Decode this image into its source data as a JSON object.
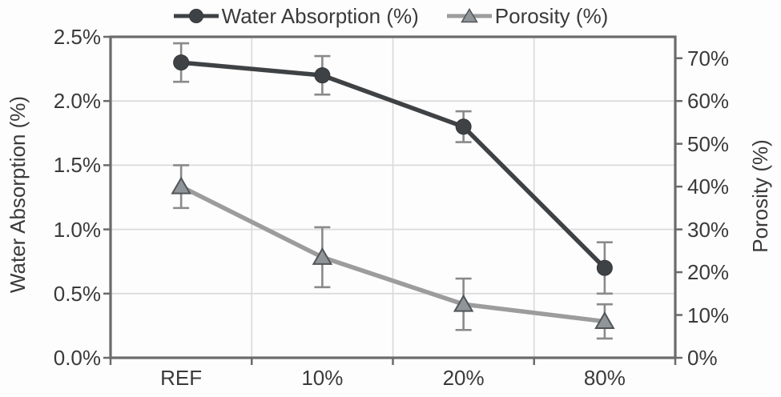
{
  "chart_data": {
    "type": "line",
    "title": "",
    "categories": [
      "REF",
      "10%",
      "20%",
      "80%"
    ],
    "series": [
      {
        "name": "Water Absorption (%)",
        "yaxis": "left",
        "marker": "circle",
        "color": "#3f4245",
        "marker_fill": "#3f4245",
        "marker_stroke": "#32353a",
        "values": [
          2.3,
          2.2,
          1.8,
          0.7
        ],
        "error": [
          0.15,
          0.15,
          0.12,
          0.2
        ]
      },
      {
        "name": "Porosity (%)",
        "yaxis": "right",
        "marker": "triangle",
        "color": "#9c9c9c",
        "marker_fill": "#8f9598",
        "marker_stroke": "#505558",
        "values": [
          40,
          23.5,
          12.5,
          8.5
        ],
        "error": [
          5,
          7,
          6,
          4
        ]
      }
    ],
    "left_axis": {
      "label": "Water Absorption (%)",
      "range": [
        0,
        2.5
      ],
      "tick_step": 0.5,
      "tick_labels": [
        "0.0%",
        "0.5%",
        "1.0%",
        "1.5%",
        "2.0%",
        "2.5%"
      ]
    },
    "right_axis": {
      "label": "Porosity (%)",
      "range": [
        0,
        75
      ],
      "tick_step": 10,
      "tick_labels": [
        "0%",
        "10%",
        "20%",
        "30%",
        "40%",
        "50%",
        "60%",
        "70%"
      ]
    },
    "grid": "on",
    "legend_position": "top",
    "colors": {
      "grid": "#dcdcdc",
      "axis": "#6b6b6b",
      "error_bar": "#8a8a8a",
      "text": "#3a3a3a"
    }
  }
}
